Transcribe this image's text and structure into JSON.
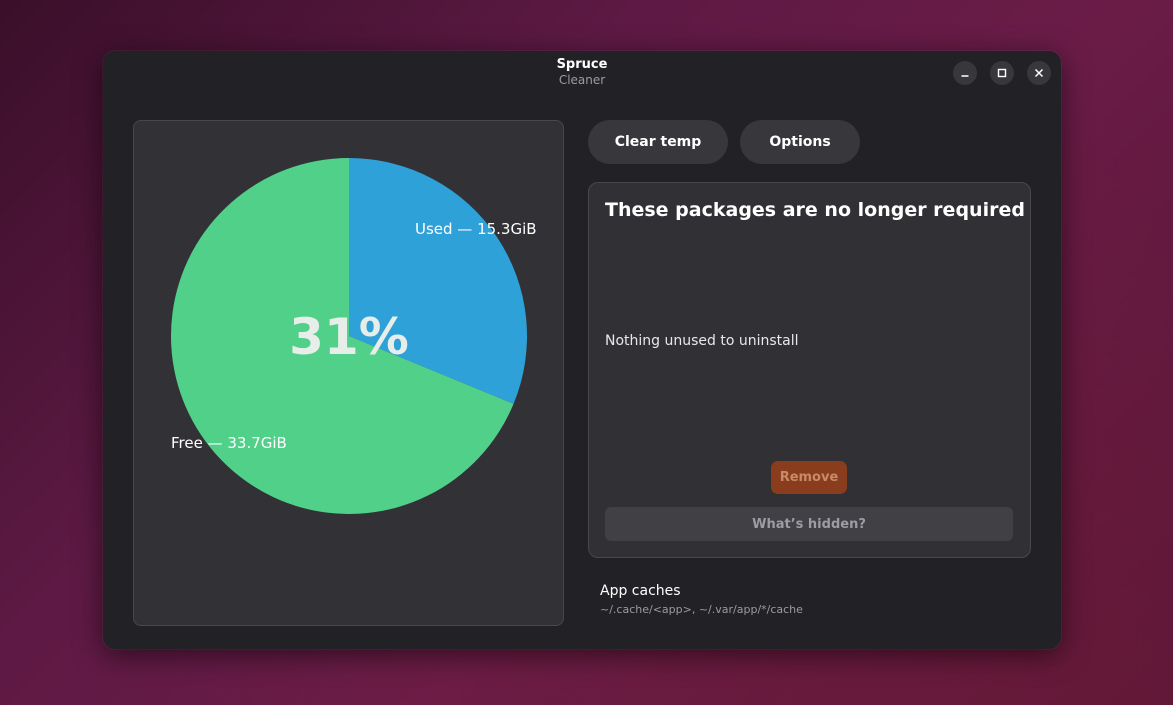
{
  "window": {
    "title": "Spruce",
    "subtitle": "Cleaner"
  },
  "controls": {
    "minimize_icon": "minimize-icon",
    "maximize_icon": "maximize-icon",
    "close_icon": "close-icon"
  },
  "chart_data": {
    "type": "pie",
    "center_label": "31%",
    "slices": [
      {
        "label": "Used — 15.3GiB",
        "value": 15.3,
        "color": "#2fa1d9"
      },
      {
        "label": "Free — 33.7GiB",
        "value": 33.7,
        "color": "#51d08a"
      }
    ]
  },
  "toolbar": {
    "clear_temp_label": "Clear temp",
    "options_label": "Options"
  },
  "packages": {
    "title": "These packages are no longer required",
    "empty_message": "Nothing unused to uninstall",
    "remove_label": "Remove",
    "hidden_label": "What’s hidden?"
  },
  "caches": {
    "title": "App caches",
    "path": "~/.cache/<app>, ~/.var/app/*/cache"
  },
  "colors": {
    "accent_used": "#2fa1d9",
    "accent_free": "#51d08a",
    "destructive": "#8a3d1c"
  }
}
